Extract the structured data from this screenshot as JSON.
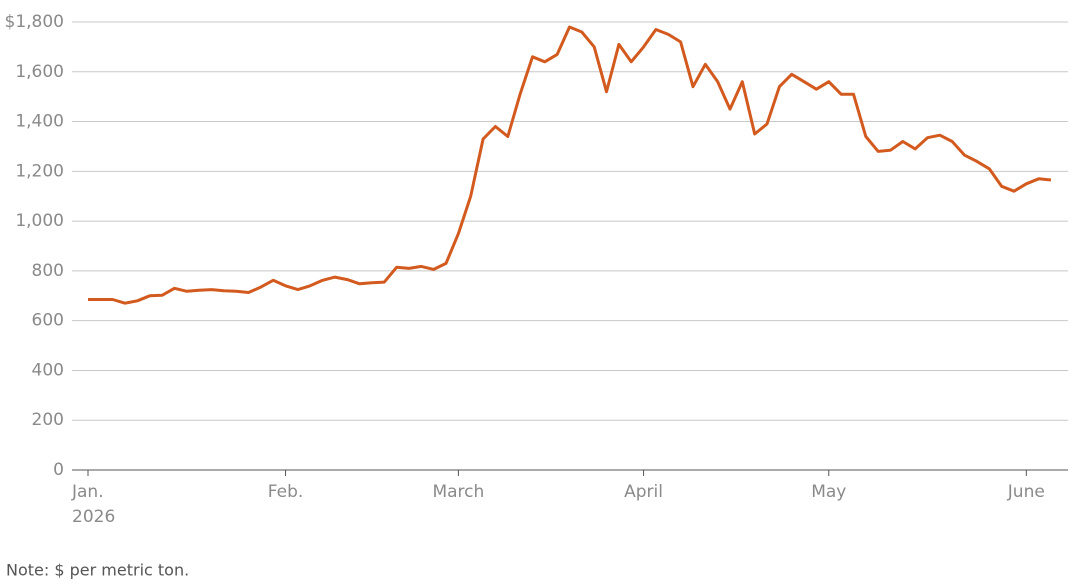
{
  "chart_data": {
    "type": "line",
    "note": "Note: $ per metric ton.",
    "categories": [
      "Jan.",
      null,
      null,
      null,
      null,
      null,
      null,
      null,
      null,
      null,
      null,
      null,
      null,
      null,
      null,
      null,
      "Feb.",
      null,
      null,
      null,
      null,
      null,
      null,
      null,
      null,
      null,
      null,
      null,
      null,
      null,
      "March",
      null,
      null,
      null,
      null,
      null,
      null,
      null,
      null,
      null,
      null,
      null,
      null,
      null,
      null,
      "April",
      null,
      null,
      null,
      null,
      null,
      null,
      null,
      null,
      null,
      null,
      null,
      null,
      null,
      null,
      "May",
      null,
      null,
      null,
      null,
      null,
      null,
      null,
      null,
      null,
      null,
      null,
      null,
      null,
      null,
      null,
      "June",
      null,
      null
    ],
    "x_year_label": "2026",
    "series": [
      {
        "color": "#d35a1e",
        "values": [
          685,
          685,
          685,
          670,
          680,
          700,
          702,
          730,
          718,
          722,
          725,
          720,
          718,
          713,
          735,
          762,
          740,
          725,
          740,
          762,
          775,
          765,
          748,
          752,
          755,
          815,
          810,
          818,
          806,
          830,
          950,
          1100,
          1330,
          1380,
          1340,
          1510,
          1660,
          1640,
          1670,
          1780,
          1760,
          1700,
          1520,
          1710,
          1640,
          1700,
          1770,
          1750,
          1720,
          1540,
          1630,
          1560,
          1450,
          1560,
          1350,
          1390,
          1540,
          1590,
          1560,
          1530,
          1560,
          1510,
          1510,
          1340,
          1280,
          1285,
          1320,
          1290,
          1335,
          1345,
          1320,
          1265,
          1240,
          1210,
          1140,
          1120,
          1150,
          1170,
          1165
        ]
      }
    ],
    "ylim": [
      0,
      1800
    ],
    "yticks": [
      0,
      200,
      400,
      600,
      800,
      {
        "value": 1000,
        "label": "1,000"
      },
      {
        "value": 1200,
        "label": "1,200"
      },
      {
        "value": 1400,
        "label": "1,400"
      },
      {
        "value": 1600,
        "label": "1,600"
      },
      {
        "value": 1800,
        "label": "$1,800"
      }
    ],
    "grid": true
  }
}
